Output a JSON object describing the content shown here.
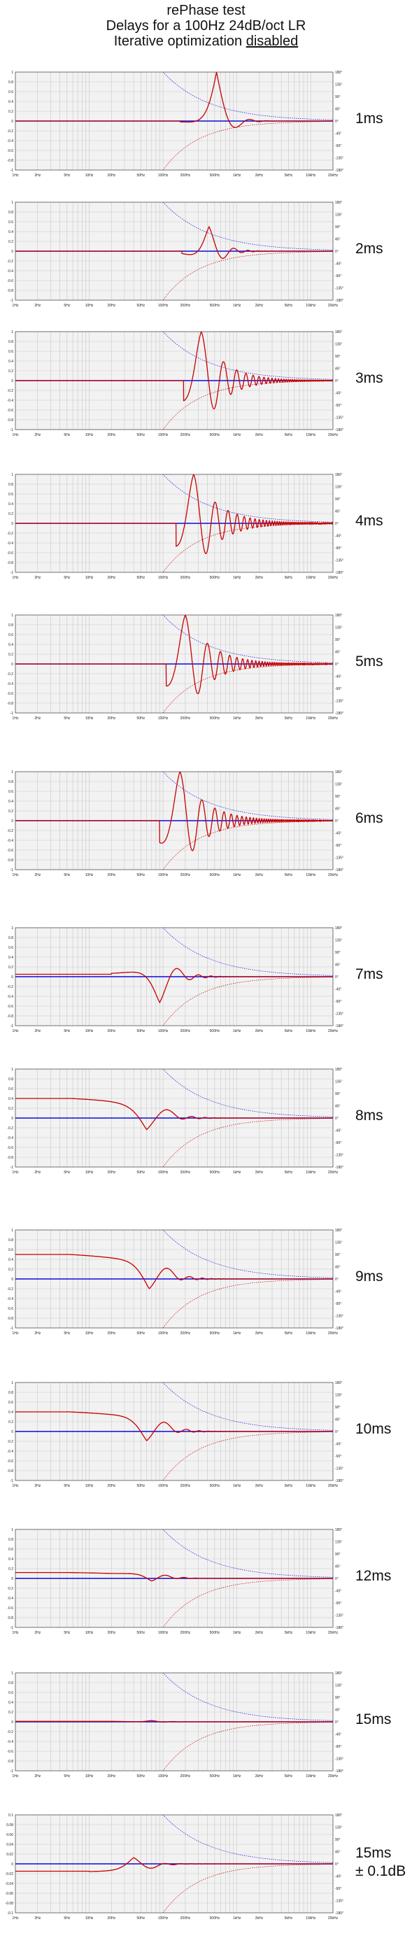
{
  "header": {
    "title": "rePhase test",
    "subtitle": "Delays for a 100Hz  24dB/oct LR",
    "line3_prefix": "Iterative optimization ",
    "line3_underlined": "disabled"
  },
  "colors": {
    "grid": "#c8c8c8",
    "frame": "#555555",
    "blue": "#0a0adc",
    "red": "#c80000",
    "plot_bg": "#f2f2f2"
  },
  "chart_data": [
    {
      "type": "line",
      "label": "1ms",
      "x_ticks": [
        "1Hz",
        "2Hz",
        "5Hz",
        "10Hz",
        "20Hz",
        "50Hz",
        "100Hz",
        "200Hz",
        "500Hz",
        "1kHz",
        "2kHz",
        "5kHz",
        "10kHz",
        "20kHz"
      ],
      "y_ticks": [
        "1",
        "0.8",
        "0.6",
        "0.4",
        "0.2",
        "0",
        "-0.2",
        "-0.4",
        "-0.6",
        "-0.8",
        "-1"
      ],
      "phase_ticks": [
        "180°",
        "135°",
        "90°",
        "45°",
        "0°",
        "-45°",
        "-90°",
        "-135°",
        "-180°"
      ],
      "ylim": [
        -1,
        1
      ],
      "impulse": {
        "start_hz": 170,
        "peak_hz": 530,
        "peak": 1.0,
        "osc_hz": 1000,
        "decay": 1.3,
        "pre": 0
      }
    },
    {
      "type": "line",
      "label": "2ms",
      "x_ticks": [
        "1Hz",
        "2Hz",
        "5Hz",
        "10Hz",
        "20Hz",
        "50Hz",
        "100Hz",
        "200Hz",
        "500Hz",
        "1kHz",
        "2kHz",
        "5kHz",
        "10kHz",
        "20kHz"
      ],
      "y_ticks": [
        "1",
        "0.8",
        "0.6",
        "0.4",
        "0.2",
        "0",
        "-0.2",
        "-0.4",
        "-0.6",
        "-0.8",
        "-1"
      ],
      "phase_ticks": [
        "180°",
        "135°",
        "90°",
        "45°",
        "0°",
        "-45°",
        "-90°",
        "-135°",
        "-180°"
      ],
      "ylim": [
        -1,
        1
      ],
      "impulse": {
        "start_hz": 180,
        "peak_hz": 420,
        "peak": 0.5,
        "osc_hz": 500,
        "decay": 1.1,
        "pre": 0
      }
    },
    {
      "type": "line",
      "label": "3ms",
      "x_ticks": [
        "1Hz",
        "2Hz",
        "5Hz",
        "10Hz",
        "20Hz",
        "50Hz",
        "100Hz",
        "200Hz",
        "500Hz",
        "1kHz",
        "2kHz",
        "5kHz",
        "10kHz",
        "20kHz"
      ],
      "y_ticks": [
        "1",
        "0.8",
        "0.6",
        "0.4",
        "0.2",
        "0",
        "-0.2",
        "-0.4",
        "-0.6",
        "-0.8",
        "-1"
      ],
      "phase_ticks": [
        "180°",
        "135°",
        "90°",
        "45°",
        "0°",
        "-45°",
        "-90°",
        "-135°",
        "-180°"
      ],
      "ylim": [
        -1,
        1
      ],
      "impulse": {
        "start_hz": 190,
        "peak_hz": 330,
        "peak": 1.0,
        "osc_hz": 333,
        "decay": 0.55,
        "pre": 0
      }
    },
    {
      "type": "line",
      "label": "4ms",
      "x_ticks": [
        "1Hz",
        "2Hz",
        "5Hz",
        "10Hz",
        "20Hz",
        "50Hz",
        "100Hz",
        "200Hz",
        "500Hz",
        "1kHz",
        "2kHz",
        "5kHz",
        "10kHz",
        "20kHz"
      ],
      "y_ticks": [
        "1",
        "0.8",
        "0.6",
        "0.4",
        "0.2",
        "0",
        "-0.2",
        "-0.4",
        "-0.6",
        "-0.8",
        "-1"
      ],
      "phase_ticks": [
        "180°",
        "135°",
        "90°",
        "45°",
        "0°",
        "-45°",
        "-90°",
        "-135°",
        "-180°"
      ],
      "ylim": [
        -1,
        1
      ],
      "impulse": {
        "start_hz": 150,
        "peak_hz": 260,
        "peak": 1.0,
        "osc_hz": 250,
        "decay": 0.5,
        "pre": 0
      }
    },
    {
      "type": "line",
      "label": "5ms",
      "x_ticks": [
        "1Hz",
        "2Hz",
        "5Hz",
        "10Hz",
        "20Hz",
        "50Hz",
        "100Hz",
        "200Hz",
        "500Hz",
        "1kHz",
        "2kHz",
        "5kHz",
        "10kHz",
        "20kHz"
      ],
      "y_ticks": [
        "1",
        "0.8",
        "0.6",
        "0.4",
        "0.2",
        "0",
        "-0.2",
        "-0.4",
        "-0.6",
        "-0.8",
        "-1"
      ],
      "phase_ticks": [
        "180°",
        "135°",
        "90°",
        "45°",
        "0°",
        "-45°",
        "-90°",
        "-135°",
        "-180°"
      ],
      "ylim": [
        -1,
        1
      ],
      "impulse": {
        "start_hz": 110,
        "peak_hz": 200,
        "peak": 1.0,
        "osc_hz": 200,
        "decay": 0.5,
        "pre": 0
      }
    },
    {
      "type": "line",
      "label": "6ms",
      "x_ticks": [
        "1Hz",
        "2Hz",
        "5Hz",
        "10Hz",
        "20Hz",
        "50Hz",
        "100Hz",
        "200Hz",
        "500Hz",
        "1kHz",
        "2kHz",
        "5kHz",
        "10kHz",
        "20kHz"
      ],
      "y_ticks": [
        "1",
        "0.8",
        "0.6",
        "0.4",
        "0.2",
        "0",
        "-0.2",
        "-0.4",
        "-0.6",
        "-0.8",
        "-1"
      ],
      "phase_ticks": [
        "180°",
        "135°",
        "90°",
        "45°",
        "0°",
        "-45°",
        "-90°",
        "-135°",
        "-180°"
      ],
      "ylim": [
        -1,
        1
      ],
      "impulse": {
        "start_hz": 90,
        "peak_hz": 170,
        "peak": 1.0,
        "osc_hz": 167,
        "decay": 0.5,
        "pre": 0
      }
    },
    {
      "type": "line",
      "label": "7ms",
      "x_ticks": [
        "1Hz",
        "2Hz",
        "5Hz",
        "10Hz",
        "20Hz",
        "50Hz",
        "100Hz",
        "200Hz",
        "500Hz",
        "1kHz",
        "2kHz",
        "5kHz",
        "10kHz",
        "20kHz"
      ],
      "y_ticks": [
        "1",
        "0.8",
        "0.6",
        "0.4",
        "0.2",
        "0",
        "-0.2",
        "-0.4",
        "-0.6",
        "-0.8",
        "-1"
      ],
      "phase_ticks": [
        "180°",
        "135°",
        "90°",
        "45°",
        "0°",
        "-45°",
        "-90°",
        "-135°",
        "-180°"
      ],
      "ylim": [
        -1,
        1
      ],
      "impulse": {
        "start_hz": 20,
        "peak_hz": 90,
        "peak": -0.55,
        "osc_hz": 143,
        "decay": 0.9,
        "pre": 0.05
      }
    },
    {
      "type": "line",
      "label": "8ms",
      "x_ticks": [
        "1Hz",
        "2Hz",
        "5Hz",
        "10Hz",
        "20Hz",
        "50Hz",
        "100Hz",
        "200Hz",
        "500Hz",
        "1kHz",
        "2kHz",
        "5kHz",
        "10kHz",
        "20kHz"
      ],
      "y_ticks": [
        "1",
        "0.8",
        "0.6",
        "0.4",
        "0.2",
        "0",
        "-0.2",
        "-0.4",
        "-0.6",
        "-0.8",
        "-1"
      ],
      "phase_ticks": [
        "180°",
        "135°",
        "90°",
        "45°",
        "0°",
        "-45°",
        "-90°",
        "-135°",
        "-180°"
      ],
      "ylim": [
        -1,
        1
      ],
      "impulse": {
        "start_hz": 5,
        "peak_hz": 60,
        "peak": -0.4,
        "osc_hz": 125,
        "decay": 0.8,
        "pre": 0.4
      }
    },
    {
      "type": "line",
      "label": "9ms",
      "x_ticks": [
        "1Hz",
        "2Hz",
        "5Hz",
        "10Hz",
        "20Hz",
        "50Hz",
        "100Hz",
        "200Hz",
        "500Hz",
        "1kHz",
        "2kHz",
        "5kHz",
        "10kHz",
        "20kHz"
      ],
      "y_ticks": [
        "1",
        "0.8",
        "0.6",
        "0.4",
        "0.2",
        "0",
        "-0.2",
        "-0.4",
        "-0.6",
        "-0.8",
        "-1"
      ],
      "phase_ticks": [
        "180°",
        "135°",
        "90°",
        "45°",
        "0°",
        "-45°",
        "-90°",
        "-135°",
        "-180°"
      ],
      "ylim": [
        -1,
        1
      ],
      "impulse": {
        "start_hz": 5,
        "peak_hz": 65,
        "peak": -0.4,
        "osc_hz": 111,
        "decay": 0.8,
        "pre": 0.5
      }
    },
    {
      "type": "line",
      "label": "10ms",
      "x_ticks": [
        "1Hz",
        "2Hz",
        "5Hz",
        "10Hz",
        "20Hz",
        "50Hz",
        "100Hz",
        "200Hz",
        "500Hz",
        "1kHz",
        "2kHz",
        "5kHz",
        "10kHz",
        "20kHz"
      ],
      "y_ticks": [
        "1",
        "0.8",
        "0.6",
        "0.4",
        "0.2",
        "0",
        "-0.2",
        "-0.4",
        "-0.6",
        "-0.8",
        "-1"
      ],
      "phase_ticks": [
        "180°",
        "135°",
        "90°",
        "45°",
        "0°",
        "-45°",
        "-90°",
        "-135°",
        "-180°"
      ],
      "ylim": [
        -1,
        1
      ],
      "impulse": {
        "start_hz": 5,
        "peak_hz": 60,
        "peak": -0.35,
        "osc_hz": 100,
        "decay": 0.8,
        "pre": 0.4
      }
    },
    {
      "type": "line",
      "label": "12ms",
      "x_ticks": [
        "1Hz",
        "2Hz",
        "5Hz",
        "10Hz",
        "20Hz",
        "50Hz",
        "100Hz",
        "200Hz",
        "500Hz",
        "1kHz",
        "2kHz",
        "5kHz",
        "10kHz",
        "20kHz"
      ],
      "y_ticks": [
        "1",
        "0.8",
        "0.6",
        "0.4",
        "0.2",
        "0",
        "-0.2",
        "-0.4",
        "-0.6",
        "-0.8",
        "-1"
      ],
      "phase_ticks": [
        "180°",
        "135°",
        "90°",
        "45°",
        "0°",
        "-45°",
        "-90°",
        "-135°",
        "-180°"
      ],
      "ylim": [
        -1,
        1
      ],
      "impulse": {
        "start_hz": 5,
        "peak_hz": 70,
        "peak": -0.1,
        "osc_hz": 83,
        "decay": 0.9,
        "pre": 0.12
      }
    },
    {
      "type": "line",
      "label": "15ms",
      "x_ticks": [
        "1Hz",
        "2Hz",
        "5Hz",
        "10Hz",
        "20Hz",
        "50Hz",
        "100Hz",
        "200Hz",
        "500Hz",
        "1kHz",
        "2kHz",
        "5kHz",
        "10kHz",
        "20kHz"
      ],
      "y_ticks": [
        "1",
        "0.8",
        "0.6",
        "0.4",
        "0.2",
        "0",
        "-0.2",
        "-0.4",
        "-0.6",
        "-0.8",
        "-1"
      ],
      "phase_ticks": [
        "180°",
        "135°",
        "90°",
        "45°",
        "0°",
        "-45°",
        "-90°",
        "-135°",
        "-180°"
      ],
      "ylim": [
        -1,
        1
      ],
      "impulse": {
        "start_hz": 20,
        "peak_hz": 70,
        "peak": 0.02,
        "osc_hz": 67,
        "decay": 0.9,
        "pre": 0.01
      }
    },
    {
      "type": "line",
      "label": "15ms",
      "label2": "± 0.1dB",
      "x_ticks": [
        "1Hz",
        "2Hz",
        "5Hz",
        "10Hz",
        "20Hz",
        "50Hz",
        "100Hz",
        "200Hz",
        "500Hz",
        "1kHz",
        "2kHz",
        "5kHz",
        "10kHz",
        "20kHz"
      ],
      "y_ticks": [
        "0.1",
        "0.08",
        "0.06",
        "0.04",
        "0.02",
        "0",
        "-0.02",
        "-0.04",
        "-0.06",
        "-0.08",
        "-0.1"
      ],
      "phase_ticks": [
        "180°",
        "135°",
        "90°",
        "45°",
        "0°",
        "-45°",
        "-90°",
        "-135°",
        "-180°"
      ],
      "ylim": [
        -0.1,
        0.1
      ],
      "impulse": {
        "start_hz": 10,
        "peak_hz": 40,
        "peak": 0.02,
        "osc_hz": 67,
        "decay": 0.9,
        "pre": -0.015
      }
    }
  ]
}
